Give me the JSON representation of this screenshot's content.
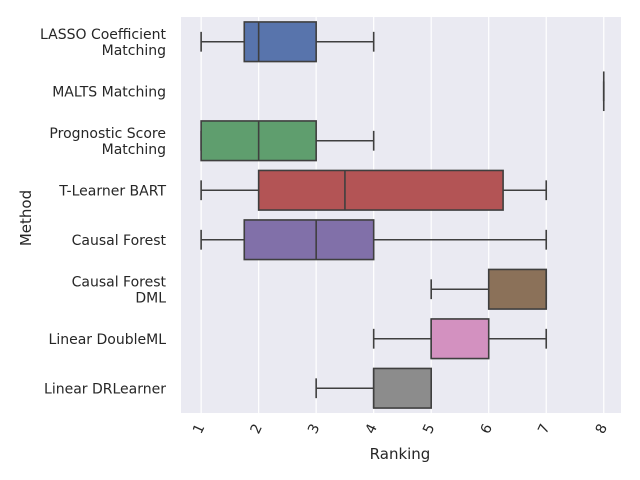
{
  "chart_data": {
    "type": "box",
    "xlabel": "Ranking",
    "ylabel": "Method",
    "xlim": [
      0.65,
      8.3
    ],
    "x_ticks": [
      1,
      2,
      3,
      4,
      5,
      6,
      7,
      8
    ],
    "x_tick_rotation": -65,
    "grid": true,
    "background": "#eaeaf2",
    "orientation": "horizontal",
    "categories": [
      [
        "LASSO Coefficient",
        "Matching"
      ],
      [
        "MALTS Matching"
      ],
      [
        "Prognostic Score",
        "Matching"
      ],
      [
        "T-Learner BART"
      ],
      [
        "Causal Forest"
      ],
      [
        "Causal Forest",
        "DML"
      ],
      [
        "Linear DoubleML"
      ],
      [
        "Linear DRLearner"
      ]
    ],
    "boxes": [
      {
        "whisker_low": 1,
        "q1": 1.75,
        "median": 2,
        "q3": 3,
        "whisker_high": 4,
        "color": "#5874ac"
      },
      {
        "whisker_low": 8,
        "q1": 8,
        "median": 8,
        "q3": 8,
        "whisker_high": 8,
        "color": "#ce7b54"
      },
      {
        "whisker_low": 1,
        "q1": 1,
        "median": 2,
        "q3": 3,
        "whisker_high": 4,
        "color": "#5f9e6e"
      },
      {
        "whisker_low": 1,
        "q1": 2,
        "median": 3.5,
        "q3": 6.25,
        "whisker_high": 7,
        "color": "#b35455"
      },
      {
        "whisker_low": 1,
        "q1": 1.75,
        "median": 3,
        "q3": 4,
        "whisker_high": 7,
        "color": "#8170a9"
      },
      {
        "whisker_low": 5,
        "q1": 6,
        "median": 7,
        "q3": 7,
        "whisker_high": 7,
        "color": "#8b7159"
      },
      {
        "whisker_low": 4,
        "q1": 5,
        "median": 5,
        "q3": 6,
        "whisker_high": 7,
        "color": "#d391c0"
      },
      {
        "whisker_low": 3,
        "q1": 4,
        "median": 4,
        "q3": 5,
        "whisker_high": 5,
        "color": "#8c8c8c"
      }
    ]
  }
}
